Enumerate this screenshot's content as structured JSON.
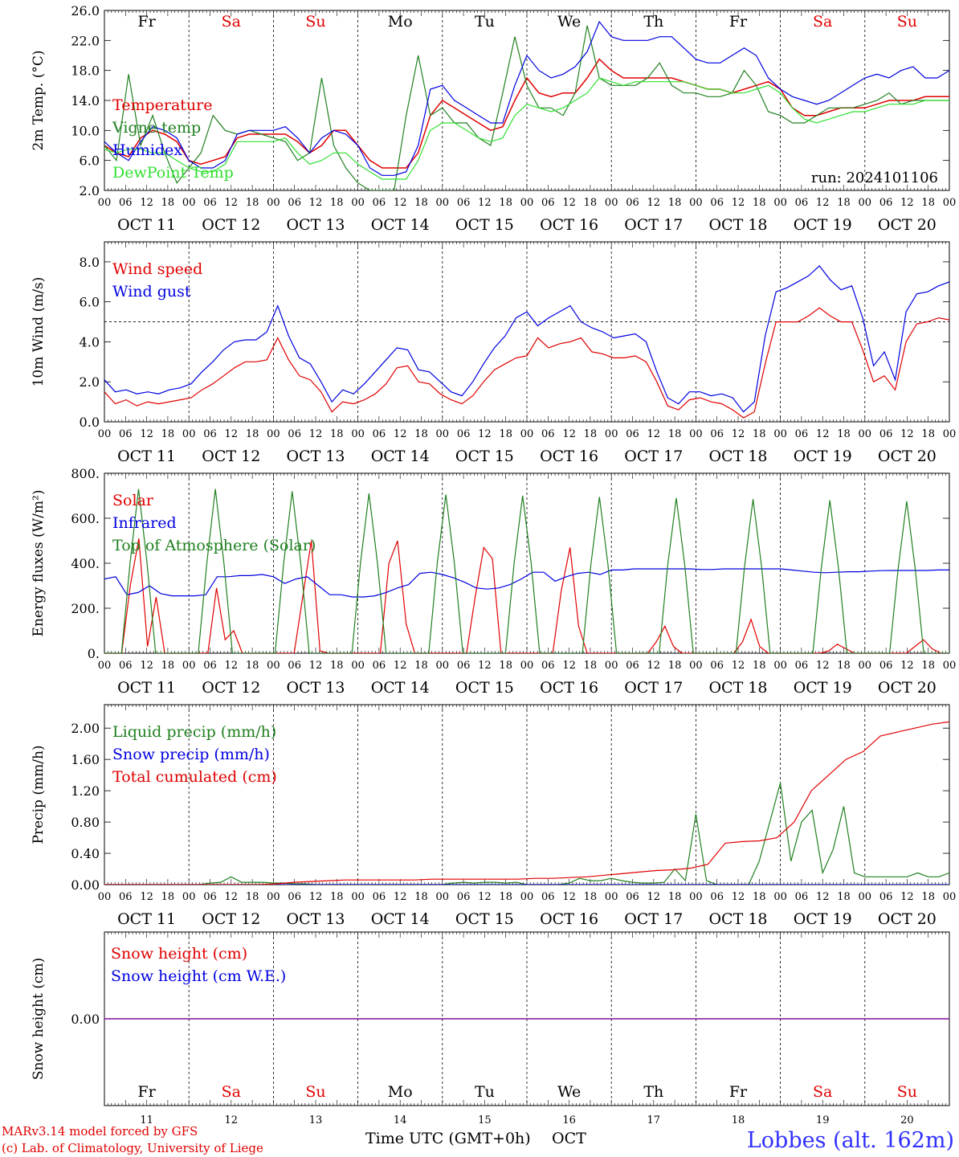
{
  "colors": {
    "red": "#e00000",
    "dkgreen": "#208020",
    "blue": "#0000e0",
    "ltgreen": "#30e030",
    "purple": "#8000a0"
  },
  "day_numbers": [
    "11",
    "12",
    "13",
    "14",
    "15",
    "16",
    "17",
    "18",
    "19",
    "20"
  ],
  "date_labels": [
    "OCT 11",
    "OCT 12",
    "OCT 13",
    "OCT 14",
    "OCT 15",
    "OCT 16",
    "OCT 17",
    "OCT 18",
    "OCT 19",
    "OCT 20"
  ],
  "hour_labels": [
    "00",
    "06",
    "12",
    "18"
  ],
  "hour_end_label": "00",
  "weekdays": [
    {
      "label": "Fr",
      "color": "#000000"
    },
    {
      "label": "Sa",
      "color": "#e00000"
    },
    {
      "label": "Su",
      "color": "#e00000"
    },
    {
      "label": "Mo",
      "color": "#000000"
    },
    {
      "label": "Tu",
      "color": "#000000"
    },
    {
      "label": "We",
      "color": "#000000"
    },
    {
      "label": "Th",
      "color": "#000000"
    },
    {
      "label": "Fr",
      "color": "#000000"
    },
    {
      "label": "Sa",
      "color": "#e00000"
    },
    {
      "label": "Su",
      "color": "#e00000"
    }
  ],
  "footer": {
    "model": "MARv3.14 model forced by GFS",
    "credit": "(c) Lab. of Climatology, University of Liege",
    "xlabel": "Time UTC (GMT+0h)",
    "month": "OCT",
    "location": "Lobbes (alt. 162m)"
  },
  "chart_data": [
    {
      "type": "line",
      "ylabel": "2m Temp. (°C)",
      "ylim": [
        2,
        26
      ],
      "yticks": [
        "2.0",
        "6.0",
        "10.0",
        "14.0",
        "18.0",
        "22.0",
        "26.0"
      ],
      "annotation": "run: 2024101106",
      "x_start_hour": 0,
      "x_end_hour": 240,
      "x_step_hours": 6,
      "series": [
        {
          "name": "Temperature",
          "color": "#e00000",
          "values": [
            8,
            7,
            6.5,
            9,
            10,
            9.5,
            8.5,
            6,
            5.5,
            6,
            6.5,
            9,
            9.5,
            9.5,
            9.5,
            9.5,
            8.5,
            7,
            8,
            10,
            10,
            8,
            6,
            5,
            5,
            5,
            7,
            12,
            14,
            13,
            12,
            11,
            10,
            10.5,
            14,
            17,
            15,
            14.5,
            15,
            15,
            17,
            19.5,
            18,
            17,
            17,
            17,
            17,
            17,
            16.5,
            16,
            15.5,
            15.5,
            15,
            15.5,
            16,
            16.5,
            15.5,
            13,
            12,
            12,
            12.5,
            13,
            13,
            13,
            13.5,
            14,
            14,
            14,
            14.5,
            14.5,
            14.5
          ]
        },
        {
          "name": "Vigne temp",
          "color": "#208020",
          "values": [
            8,
            6,
            17.5,
            8,
            12,
            7,
            3,
            5,
            7,
            12,
            10,
            9.5,
            10,
            9.5,
            9,
            8.5,
            6,
            7,
            17,
            8,
            5,
            3,
            2,
            2,
            2,
            12,
            20,
            12,
            13,
            11,
            11,
            9,
            8,
            15,
            22.5,
            16,
            13,
            13,
            12,
            15,
            24,
            17,
            16,
            16,
            16,
            17,
            19,
            16,
            15,
            15,
            14.5,
            14.5,
            15,
            18,
            16,
            12.5,
            12,
            11,
            11,
            12,
            13,
            13,
            13,
            13.5,
            14,
            15,
            13.5,
            14,
            14,
            14,
            14
          ]
        },
        {
          "name": "Humidex",
          "color": "#0000e0",
          "values": [
            8.5,
            7,
            6,
            8.5,
            10.5,
            10,
            9,
            6,
            5,
            5,
            6,
            9.5,
            10,
            10,
            10,
            10.5,
            9,
            7,
            9,
            10,
            9.5,
            8,
            5,
            4,
            4,
            4.5,
            8,
            15.5,
            16,
            14,
            13,
            12,
            11,
            11,
            16,
            20,
            18,
            17,
            17.5,
            18.5,
            20.5,
            24.5,
            22.5,
            22,
            22,
            22,
            22.5,
            22.5,
            21,
            19.5,
            19,
            19,
            20,
            21,
            20,
            17,
            15.5,
            14.5,
            14,
            13.5,
            14,
            15,
            16,
            17,
            17.5,
            17,
            18,
            18.5,
            17,
            17,
            18
          ]
        },
        {
          "name": "DewPoint Temp",
          "color": "#30e030",
          "values": [
            7.5,
            7,
            7.5,
            7.5,
            7,
            7,
            6,
            5,
            4.5,
            4.5,
            5.5,
            8.5,
            8.5,
            8.5,
            8.5,
            9,
            7,
            5.5,
            6,
            7,
            7,
            5.5,
            4.5,
            3.5,
            3.5,
            3.5,
            6,
            10,
            11,
            11,
            10,
            9,
            8.5,
            9,
            12,
            13.5,
            13,
            12.5,
            13,
            14,
            15,
            17,
            16.5,
            16,
            16.5,
            16.5,
            16.5,
            16.5,
            16.5,
            16,
            15.5,
            15.5,
            15,
            15,
            15.5,
            16,
            15,
            13,
            11.5,
            11,
            11.5,
            12,
            12.5,
            12.5,
            13,
            13.5,
            13.5,
            13.5,
            14,
            14,
            14
          ]
        }
      ]
    },
    {
      "type": "line",
      "ylabel": "10m Wind (m/s)",
      "ylim": [
        0,
        9
      ],
      "yticks": [
        "0.0",
        "2.0",
        "4.0",
        "6.0",
        "8.0"
      ],
      "hline": 5.0,
      "x_start_hour": 0,
      "x_end_hour": 240,
      "x_step_hours": 6,
      "series": [
        {
          "name": "Wind speed",
          "color": "#e00000",
          "values": [
            1.5,
            0.9,
            1.1,
            0.8,
            1,
            0.9,
            1,
            1.1,
            1.2,
            1.6,
            1.9,
            2.3,
            2.7,
            3,
            3,
            3.1,
            4.2,
            3.1,
            2.3,
            2.1,
            1.5,
            0.5,
            1,
            0.9,
            1.1,
            1.4,
            1.9,
            2.7,
            2.8,
            2,
            1.9,
            1.4,
            1.1,
            0.9,
            1.3,
            2,
            2.6,
            2.9,
            3.2,
            3.3,
            4.2,
            3.7,
            3.9,
            4,
            4.2,
            3.5,
            3.4,
            3.2,
            3.2,
            3.3,
            3,
            2,
            0.8,
            0.6,
            1.1,
            1.2,
            1,
            0.9,
            0.6,
            0.2,
            0.5,
            2.9,
            5,
            5,
            5,
            5.3,
            5.7,
            5.3,
            5,
            5,
            3.6,
            2,
            2.3,
            1.6,
            4,
            4.9,
            5,
            5.2,
            5.1
          ]
        },
        {
          "name": "Wind gust",
          "color": "#0000e0",
          "values": [
            2.1,
            1.5,
            1.6,
            1.4,
            1.5,
            1.4,
            1.6,
            1.7,
            1.9,
            2.5,
            3,
            3.6,
            4,
            4.1,
            4.1,
            4.5,
            5.8,
            4.3,
            3.2,
            2.9,
            2,
            1,
            1.6,
            1.4,
            1.9,
            2.5,
            3.1,
            3.7,
            3.6,
            2.6,
            2.5,
            2,
            1.5,
            1.3,
            2,
            2.9,
            3.7,
            4.3,
            5.2,
            5.5,
            4.8,
            5.2,
            5.5,
            5.8,
            5,
            4.7,
            4.5,
            4.2,
            4.3,
            4.4,
            4,
            2.5,
            1.2,
            0.9,
            1.5,
            1.5,
            1.3,
            1.4,
            1.2,
            0.5,
            1,
            4.3,
            6.5,
            6.7,
            7,
            7.3,
            7.8,
            7.1,
            6.6,
            6.8,
            5.2,
            2.8,
            3.5,
            2.1,
            5.5,
            6.4,
            6.5,
            6.8,
            7
          ]
        }
      ]
    },
    {
      "type": "line",
      "ylabel": "Energy fluxes (W/m²)",
      "ylim": [
        0,
        800
      ],
      "yticks": [
        "0.",
        "200.",
        "400.",
        "600.",
        "800."
      ],
      "x_start_hour": 0,
      "x_end_hour": 240,
      "x_step_hours": 3,
      "series": [
        {
          "name": "Solar",
          "color": "#e00000",
          "values": [
            0,
            0,
            0,
            300,
            510,
            30,
            250,
            0,
            0,
            0,
            0,
            0,
            0,
            290,
            60,
            100,
            0,
            0,
            0,
            0,
            0,
            0,
            0,
            250,
            500,
            10,
            0,
            0,
            0,
            0,
            0,
            0,
            0,
            400,
            500,
            130,
            0,
            0,
            0,
            0,
            0,
            0,
            0,
            250,
            470,
            420,
            0,
            0,
            0,
            0,
            0,
            0,
            0,
            280,
            470,
            120,
            0,
            0,
            0,
            0,
            0,
            0,
            0,
            0,
            50,
            120,
            30,
            0,
            0,
            0,
            0,
            0,
            0,
            0,
            50,
            150,
            30,
            0,
            0,
            0,
            0,
            0,
            0,
            0,
            10,
            40,
            20,
            0,
            0,
            0,
            0,
            0,
            0,
            0,
            30,
            60,
            20,
            0,
            0
          ]
        },
        {
          "name": "Infrared",
          "color": "#0000e0",
          "values": [
            330,
            340,
            260,
            270,
            300,
            265,
            255,
            255,
            255,
            260,
            340,
            340,
            345,
            345,
            350,
            340,
            310,
            330,
            340,
            300,
            260,
            260,
            250,
            250,
            255,
            270,
            290,
            305,
            355,
            360,
            350,
            335,
            315,
            290,
            285,
            290,
            305,
            330,
            360,
            360,
            320,
            340,
            355,
            360,
            350,
            370,
            370,
            375,
            375,
            375,
            375,
            375,
            375,
            372,
            372,
            375,
            375,
            375,
            375,
            375,
            375,
            370,
            365,
            360,
            358,
            360,
            362,
            362,
            365,
            367,
            368,
            368,
            368,
            368,
            370,
            370
          ]
        },
        {
          "name": "Top of Atmosphere (Solar)",
          "color": "#208020",
          "values": [
            0,
            0,
            0,
            400,
            730,
            400,
            0,
            0,
            0,
            0,
            0,
            0,
            400,
            730,
            400,
            0,
            0,
            0,
            0,
            0,
            0,
            400,
            720,
            400,
            0,
            0,
            0,
            0,
            0,
            0,
            400,
            710,
            400,
            0,
            0,
            0,
            0,
            0,
            0,
            400,
            705,
            400,
            0,
            0,
            0,
            0,
            0,
            0,
            400,
            700,
            400,
            0,
            0,
            0,
            0,
            0,
            0,
            395,
            695,
            395,
            0,
            0,
            0,
            0,
            0,
            0,
            390,
            690,
            390,
            0,
            0,
            0,
            0,
            0,
            0,
            385,
            685,
            385,
            0,
            0,
            0,
            0,
            0,
            0,
            380,
            680,
            380,
            0,
            0,
            0,
            0,
            0,
            0,
            375,
            675,
            375,
            0,
            0,
            0,
            0
          ]
        }
      ]
    },
    {
      "type": "line",
      "ylabel": "Precip (mm/h)",
      "ylim": [
        0,
        2.3
      ],
      "yticks": [
        "0.00",
        "0.40",
        "0.80",
        "1.20",
        "1.60",
        "2.00"
      ],
      "x_start_hour": 0,
      "x_end_hour": 240,
      "x_step_hours": 6,
      "series": [
        {
          "name": "Liquid precip (mm/h)",
          "color": "#208020",
          "values": [
            0,
            0,
            0,
            0,
            0,
            0,
            0,
            0,
            0,
            0,
            0.02,
            0.03,
            0.1,
            0.03,
            0.03,
            0.03,
            0.02,
            0.02,
            0.01,
            0.01,
            0,
            0,
            0,
            0,
            0,
            0,
            0,
            0,
            0,
            0,
            0,
            0,
            0,
            0.02,
            0.03,
            0.02,
            0.03,
            0.03,
            0.02,
            0.03,
            0,
            0,
            0,
            0,
            0.02,
            0.08,
            0.05,
            0.05,
            0.08,
            0.05,
            0.03,
            0.02,
            0.02,
            0.03,
            0.2,
            0.05,
            0.9,
            0.05,
            0,
            0,
            0,
            0,
            0.3,
            0.8,
            1.3,
            0.3,
            0.8,
            0.95,
            0.15,
            0.45,
            1,
            0.15,
            0.1,
            0.1,
            0.1,
            0.1,
            0.1,
            0.15,
            0.1,
            0.1,
            0.15
          ]
        },
        {
          "name": "Snow precip (mm/h)",
          "color": "#0000e0",
          "values": [
            0,
            0,
            0,
            0,
            0,
            0,
            0,
            0,
            0,
            0,
            0,
            0,
            0,
            0,
            0,
            0,
            0,
            0,
            0,
            0,
            0,
            0,
            0,
            0,
            0,
            0,
            0,
            0,
            0,
            0,
            0,
            0,
            0,
            0,
            0,
            0,
            0,
            0,
            0,
            0,
            0,
            0
          ]
        },
        {
          "name": "Total cumulated (cm)",
          "color": "#e00000",
          "values": [
            0,
            0,
            0,
            0,
            0,
            0,
            0,
            0,
            0,
            0,
            0.01,
            0.03,
            0.04,
            0.05,
            0.06,
            0.06,
            0.06,
            0.06,
            0.06,
            0.07,
            0.07,
            0.07,
            0.07,
            0.07,
            0.07,
            0.08,
            0.08,
            0.09,
            0.1,
            0.12,
            0.14,
            0.16,
            0.18,
            0.19,
            0.21,
            0.26,
            0.53,
            0.55,
            0.56,
            0.6,
            0.8,
            1.2,
            1.4,
            1.6,
            1.7,
            1.9,
            1.95,
            2.0,
            2.05,
            2.08
          ]
        }
      ]
    },
    {
      "type": "line",
      "ylabel": "Snow height (cm)",
      "ylim": [
        -1,
        1
      ],
      "yticks": [
        "0.00"
      ],
      "x_start_hour": 0,
      "x_end_hour": 240,
      "x_step_hours": 24,
      "series": [
        {
          "name": "Snow height (cm)",
          "color": "#e00000",
          "values": [
            0,
            0,
            0,
            0,
            0,
            0,
            0,
            0,
            0,
            0,
            0
          ]
        },
        {
          "name": "Snow height (cm W.E.)",
          "color": "#0000e0",
          "values": [
            0,
            0,
            0,
            0,
            0,
            0,
            0,
            0,
            0,
            0,
            0
          ]
        }
      ]
    }
  ]
}
